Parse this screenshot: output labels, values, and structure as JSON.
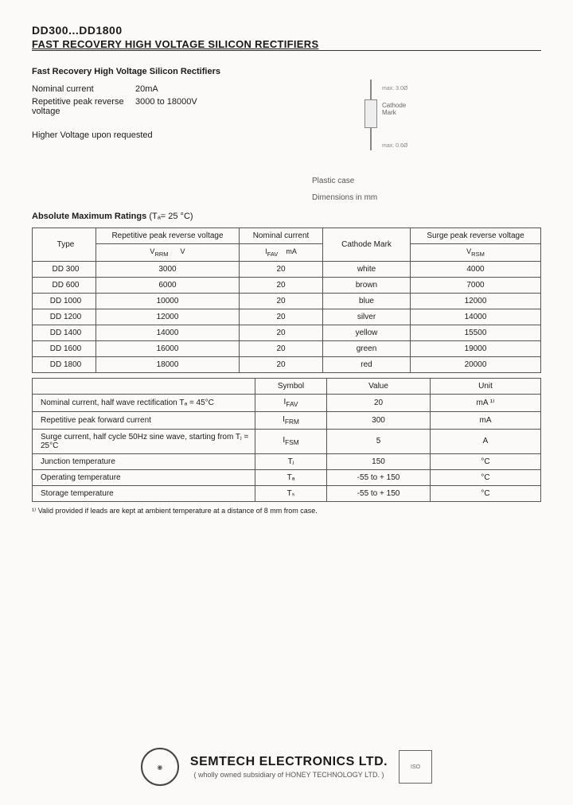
{
  "header": {
    "part_range": "DD300...DD1800",
    "title": "FAST RECOVERY HIGH VOLTAGE SILICON RECTIFIERS"
  },
  "intro": {
    "subheading": "Fast Recovery High Voltage Silicon  Rectifiers",
    "nominal_current_label": "Nominal current",
    "nominal_current_value": "20mA",
    "rep_peak_label": "Repetitive peak reverse voltage",
    "rep_peak_value": "3000 to 18000V",
    "higher_voltage": "Higher Voltage upon requested"
  },
  "package": {
    "cathode_mark": "Cathode Mark",
    "dim_top": "max. 3.0Ø",
    "dim_bot": "max. 0.6Ø",
    "case": "Plastic case",
    "dimensions": "Dimensions in mm"
  },
  "ratings": {
    "heading": "Absolute Maximum Ratings",
    "heading_cond": "(Tₐ= 25 °C)",
    "columns": {
      "type": "Type",
      "vrrm": "Repetitive peak reverse voltage",
      "vrrm_sym": "V",
      "vrrm_sym_sub": "RRM",
      "vrrm_unit": "V",
      "ifav": "Nominal  current",
      "ifav_sym": "I",
      "ifav_sym_sub": "FAV",
      "ifav_unit": "mA",
      "mark": "Cathode Mark",
      "vfsm": "Surge peak reverse voltage",
      "vfsm_sym": "V",
      "vfsm_sym_sub": "RSM"
    },
    "rows": [
      {
        "type": "DD 300",
        "vrrm": "3000",
        "ifav": "20",
        "mark": "white",
        "vfsm": "4000"
      },
      {
        "type": "DD 600",
        "vrrm": "6000",
        "ifav": "20",
        "mark": "brown",
        "vfsm": "7000"
      },
      {
        "type": "DD 1000",
        "vrrm": "10000",
        "ifav": "20",
        "mark": "blue",
        "vfsm": "12000"
      },
      {
        "type": "DD 1200",
        "vrrm": "12000",
        "ifav": "20",
        "mark": "silver",
        "vfsm": "14000"
      },
      {
        "type": "DD 1400",
        "vrrm": "14000",
        "ifav": "20",
        "mark": "yellow",
        "vfsm": "15500"
      },
      {
        "type": "DD 1600",
        "vrrm": "16000",
        "ifav": "20",
        "mark": "green",
        "vfsm": "19000"
      },
      {
        "type": "DD 1800",
        "vrrm": "18000",
        "ifav": "20",
        "mark": "red",
        "vfsm": "20000"
      }
    ]
  },
  "secondary": {
    "columns": {
      "symbol": "Symbol",
      "value": "Value",
      "unit": "Unit"
    },
    "rows": [
      {
        "param": "Nominal current, half wave rectification Tₐ = 45°C",
        "sym": "I",
        "sym_sub": "FAV",
        "value": "20",
        "unit": "mA ¹⁾"
      },
      {
        "param": "Repetitive peak forward current",
        "sym": "I",
        "sym_sub": "FRM",
        "value": "300",
        "unit": "mA"
      },
      {
        "param": "Surge current, half cycle 50Hz sine wave, starting from Tⱼ = 25°C",
        "sym": "I",
        "sym_sub": "FSM",
        "value": "5",
        "unit": "A"
      },
      {
        "param": "Junction temperature",
        "sym": "Tⱼ",
        "sym_sub": "",
        "value": "150",
        "unit": "°C"
      },
      {
        "param": "Operating temperature",
        "sym": "Tₐ",
        "sym_sub": "",
        "value": "-55 to + 150",
        "unit": "°C"
      },
      {
        "param": "Storage temperature",
        "sym": "Tₛ",
        "sym_sub": "",
        "value": "-55 to + 150",
        "unit": "°C"
      }
    ],
    "footnote": "¹⁾ Valid provided if leads are kept at ambient temperature at a distance of 8 mm from case."
  },
  "footer": {
    "company": "SEMTECH ELECTRONICS LTD.",
    "sub": "( wholly owned subsidiary of  HONEY TECHNOLOGY LTD. )"
  }
}
